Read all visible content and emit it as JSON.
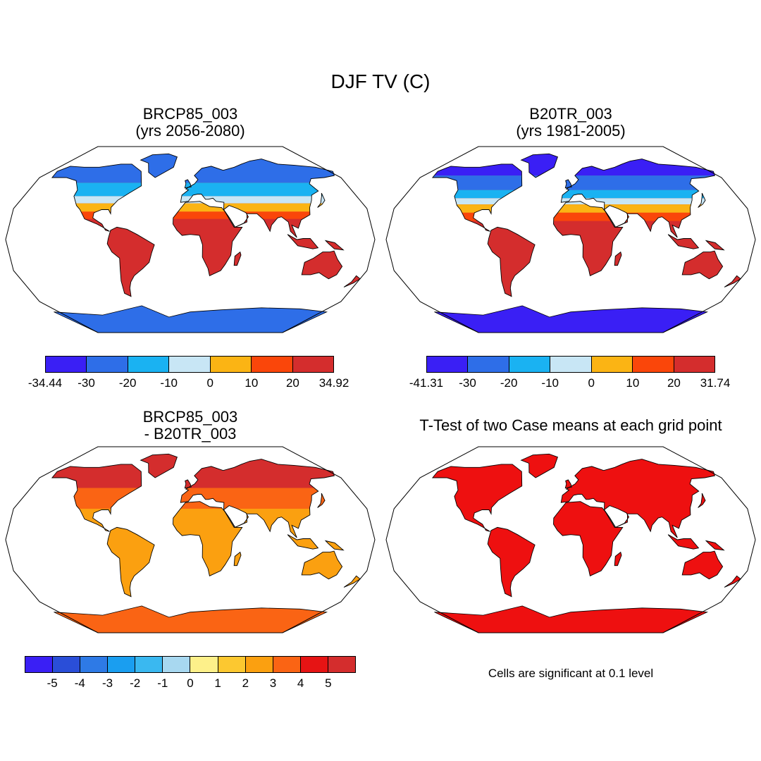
{
  "title": "DJF TV (C)",
  "panels": [
    {
      "id": "p1",
      "title_line1": "BRCP85_003",
      "title_line2": "(yrs 2056-2080)",
      "palette": "warm",
      "colorbar": {
        "colors": [
          "#3a1ff5",
          "#2e6ee8",
          "#1ab2f2",
          "#c8e6f5",
          "#fbb414",
          "#fa460a",
          "#d42d2d"
        ],
        "labels": [
          "-34.44",
          "-30",
          "-20",
          "-10",
          "0",
          "10",
          "20",
          "34.92"
        ]
      }
    },
    {
      "id": "p2",
      "title_line1": "B20TR_003",
      "title_line2": "(yrs 1981-2005)",
      "palette": "cold",
      "colorbar": {
        "colors": [
          "#3a1ff5",
          "#2e6ee8",
          "#1ab2f2",
          "#c8e6f5",
          "#fbb414",
          "#fa460a",
          "#d42d2d"
        ],
        "labels": [
          "-41.31",
          "-30",
          "-20",
          "-10",
          "0",
          "10",
          "20",
          "31.74"
        ]
      }
    },
    {
      "id": "p3",
      "title_line1": "BRCP85_003",
      "title_line2": "- B20TR_003",
      "palette": "diff",
      "colorbar": {
        "colors": [
          "#3a1ff5",
          "#2a4ed8",
          "#2e7ae6",
          "#1a9ef0",
          "#3ab8f0",
          "#a8d8f0",
          "#fdf08a",
          "#fcc830",
          "#fba010",
          "#fa6414",
          "#e61414",
          "#d42d2d"
        ],
        "labels": [
          "-5",
          "-4",
          "-3",
          "-2",
          "-1",
          "0",
          "1",
          "2",
          "3",
          "4",
          "5"
        ]
      }
    },
    {
      "id": "p4",
      "title_line1": "T-Test of two Case means at each grid point",
      "title_line2": "",
      "palette": "ttest",
      "note": "Cells are significant at 0.1 level"
    }
  ]
}
